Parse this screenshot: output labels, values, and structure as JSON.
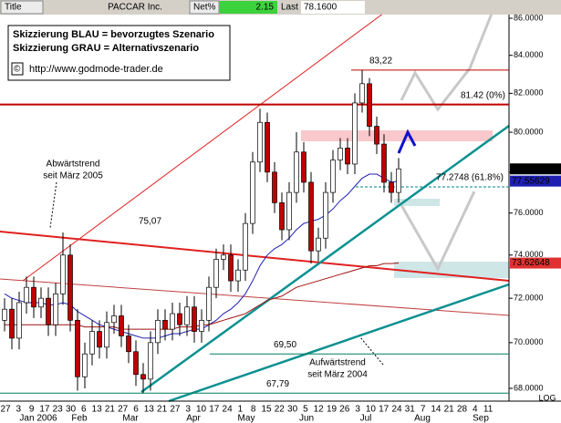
{
  "header": {
    "title": "Title",
    "symbol": "PACCAR Inc.",
    "net_label": "Net%",
    "net_value": "2.15",
    "last_label": "Last",
    "last_value": "78.1600"
  },
  "legend": {
    "line1": "Skizzierung BLAU = bevorzugtes Szenario",
    "line2": "Skizzierung GRAU = Alternativszenario",
    "copyright": "©",
    "url": "http://www.godmode-trader.de"
  },
  "chart_data": {
    "type": "candlestick",
    "log": true,
    "ylim": [
      67.45,
      86.2
    ],
    "yticks": [
      {
        "value": 68,
        "label": "68.0000"
      },
      {
        "value": 70,
        "label": "70.0000"
      },
      {
        "value": 72,
        "label": "72.0000"
      },
      {
        "value": 74,
        "label": "74.0000"
      },
      {
        "value": 76,
        "label": "76.0000"
      },
      {
        "value": 78,
        "label": "78.0000"
      },
      {
        "value": 80,
        "label": "80.0000"
      },
      {
        "value": 82,
        "label": "82.0000"
      },
      {
        "value": 84,
        "label": "84.0000"
      },
      {
        "value": 86,
        "label": "86.0000"
      }
    ],
    "scale_label": "LOG",
    "xlabels": [
      "27",
      "3",
      "9",
      "17",
      "23",
      "30",
      "6",
      "13",
      "21",
      "27",
      "6",
      "13",
      "21",
      "27",
      "3",
      "10",
      "17",
      "24",
      "1",
      "8",
      "15",
      "22",
      "30",
      "5",
      "12",
      "19",
      "26",
      "3",
      "10",
      "17",
      "24",
      "31",
      "7",
      "14",
      "21",
      "28",
      "4",
      "11"
    ],
    "months": [
      "Jan 2006",
      "Feb",
      "Mar",
      "Apr",
      "May",
      "Jun",
      "Jul",
      "Aug",
      "Sep"
    ],
    "up_color": "#ffffff",
    "down_color": "#c00000",
    "candles": {
      "open": [
        71.0,
        71.5,
        70.2,
        71.8,
        72.5,
        71.6,
        72.0,
        70.8,
        72.2,
        74.0,
        71.0,
        68.5,
        69.5,
        70.5,
        69.8,
        70.9,
        71.2,
        70.3,
        69.6,
        68.6,
        68.4,
        70.0,
        71.0,
        70.6,
        71.3,
        70.8,
        71.6,
        70.5,
        71.0,
        72.5,
        73.8,
        74.0,
        72.8,
        73.3,
        75.5,
        78.5,
        80.5,
        78.0,
        76.5,
        75.2,
        77.0,
        79.0,
        77.5,
        74.2,
        74.8,
        77.0,
        78.6,
        79.2,
        78.4,
        81.5,
        82.5,
        80.3,
        79.4,
        77.5,
        77.0
      ],
      "high": [
        72.0,
        72.0,
        72.3,
        73.0,
        73.0,
        72.5,
        72.5,
        72.7,
        75.07,
        74.5,
        71.5,
        70.0,
        71.0,
        71.0,
        71.4,
        71.7,
        71.7,
        70.8,
        70.1,
        69.1,
        70.5,
        71.5,
        71.5,
        71.8,
        71.8,
        72.1,
        72.1,
        71.5,
        73.0,
        74.3,
        74.5,
        74.5,
        73.8,
        76.0,
        79.0,
        81.2,
        81.0,
        78.5,
        77.0,
        77.5,
        80.0,
        79.5,
        78.0,
        75.3,
        77.5,
        79.1,
        79.7,
        79.7,
        82.0,
        83.22,
        82.8,
        80.8,
        79.9,
        78.0,
        78.7
      ],
      "low": [
        70.5,
        69.7,
        69.7,
        71.3,
        71.1,
        71.1,
        70.3,
        70.3,
        71.7,
        70.5,
        67.9,
        68.0,
        69.0,
        69.3,
        69.3,
        70.4,
        69.8,
        69.1,
        68.1,
        67.79,
        67.9,
        69.5,
        70.1,
        70.1,
        70.3,
        70.3,
        70.0,
        70.0,
        70.5,
        72.0,
        73.3,
        72.3,
        72.3,
        72.8,
        75.0,
        78.0,
        77.5,
        76.0,
        74.7,
        74.7,
        76.5,
        77.0,
        73.6,
        73.7,
        74.3,
        76.5,
        78.1,
        77.9,
        77.9,
        81.0,
        79.8,
        78.9,
        77.0,
        76.5,
        76.5
      ],
      "close": [
        71.5,
        70.2,
        71.8,
        72.5,
        71.6,
        72.0,
        70.8,
        72.2,
        74.0,
        71.0,
        68.5,
        69.5,
        70.5,
        69.8,
        70.9,
        71.2,
        70.3,
        69.6,
        68.6,
        68.4,
        70.0,
        71.0,
        70.6,
        71.3,
        70.8,
        71.6,
        70.5,
        71.0,
        72.5,
        73.8,
        74.0,
        72.8,
        73.3,
        75.5,
        78.5,
        80.5,
        78.0,
        76.5,
        75.2,
        77.0,
        79.0,
        77.5,
        74.2,
        74.8,
        77.0,
        78.6,
        79.2,
        78.4,
        81.5,
        82.5,
        80.3,
        79.4,
        77.5,
        77.0,
        78.16
      ]
    },
    "series": [
      {
        "color": "#1f1fb4",
        "values": [
          72.2,
          72.0,
          71.9,
          71.8,
          71.8,
          71.8,
          71.7,
          71.7,
          71.8,
          71.7,
          71.4,
          71.2,
          71.0,
          70.8,
          70.7,
          70.6,
          70.5,
          70.4,
          70.3,
          70.2,
          70.2,
          70.2,
          70.3,
          70.4,
          70.4,
          70.5,
          70.6,
          70.6,
          70.8,
          71.0,
          71.3,
          71.5,
          71.8,
          72.2,
          72.8,
          73.5,
          74.0,
          74.3,
          74.5,
          74.8,
          75.2,
          75.5,
          75.6,
          75.7,
          75.9,
          76.2,
          76.6,
          76.9,
          77.3,
          77.7,
          77.9,
          77.9,
          77.7,
          77.5,
          77.56
        ]
      },
      {
        "color": "#a01010",
        "values": [
          70.8,
          70.8,
          70.8,
          70.8,
          70.8,
          70.8,
          70.8,
          70.8,
          70.8,
          70.8,
          70.8,
          70.7,
          70.7,
          70.7,
          70.7,
          70.7,
          70.6,
          70.6,
          70.6,
          70.6,
          70.6,
          70.6,
          70.6,
          70.6,
          70.7,
          70.7,
          70.7,
          70.8,
          70.8,
          70.9,
          71.0,
          71.1,
          71.2,
          71.3,
          71.5,
          71.7,
          71.9,
          72.0,
          72.1,
          72.3,
          72.5,
          72.6,
          72.7,
          72.8,
          72.9,
          73.0,
          73.1,
          73.2,
          73.3,
          73.4,
          73.5,
          73.5,
          73.6,
          73.6,
          73.63
        ]
      }
    ],
    "levels": [
      {
        "value": 83.22,
        "label": "83,22",
        "color": "#c00000"
      },
      {
        "value": 81.42,
        "label": "81.42 (0%)",
        "color": "#c00000"
      },
      {
        "value": 77.2748,
        "label": "77.2748 (61.8%)",
        "color": "#008080"
      },
      {
        "value": 69.5,
        "label": "69,50",
        "color": "#008060"
      },
      {
        "value": 67.79,
        "label": "67,79",
        "color": "#008060"
      }
    ],
    "peak_label": {
      "value": 75.07,
      "label": "75,07"
    },
    "price_markers": [
      {
        "value": 78.16,
        "label": "78.1600",
        "color": "#000000"
      },
      {
        "value": 77.55629,
        "label": "77.55629",
        "color": "#1f1fb4"
      },
      {
        "value": 73.62648,
        "label": "73.62648",
        "color": "#e03030"
      }
    ],
    "annotations": [
      "Abwärtstrend",
      "seit März 2005",
      "Aufwärtstrend",
      "seit März 2004"
    ]
  }
}
